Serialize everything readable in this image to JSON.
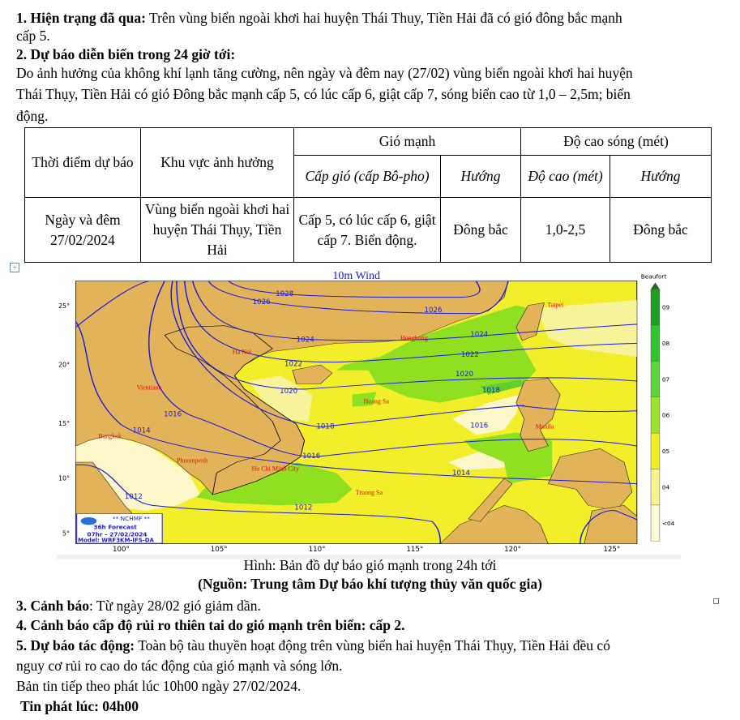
{
  "section1": {
    "heading": "1. Hiện trạng đã qua:",
    "text_line1": " Trên vùng biển ngoài khơi hai huyện Thái Thuy, Tiền Hải đã có gió đông bắc mạnh",
    "text_line2": "cấp 5."
  },
  "section2": {
    "heading": "2. Dự báo diễn biến trong 24 giờ tới:",
    "lines": [
      "Do ảnh hưởng của không khí lạnh tăng cường, nên ngày và đêm  nay (27/02) vùng biển ngoài khơi hai huyện",
      "Thái Thụy, Tiền Hải có gió Đông bắc mạnh cấp 5, có lúc cấp 6, giật cấp 7, sóng biển cao từ 1,0 – 2,5m; biển",
      "động."
    ]
  },
  "table": {
    "header": {
      "time": "Thời điểm dự báo",
      "area": "Khu vực ảnh hưởng",
      "wind": "Gió mạnh",
      "wave": "Độ cao sóng (mét)",
      "wind_level": "Cấp gió (cấp Bô-pho)",
      "wind_dir": "Hướng",
      "wave_height": "Độ cao (mét)",
      "wave_dir": "Hướng"
    },
    "row": {
      "time": "Ngày và đêm 27/02/2024",
      "area": "Vùng biển ngoài khơi hai huyện Thái Thụy, Tiền Hải",
      "wind_level": "Cấp 5, có lúc cấp 6, giật cấp 7. Biển động.",
      "wind_dir": "Đông bắc",
      "wave_height": "1,0-2,5",
      "wave_dir": "Đông bắc"
    }
  },
  "map": {
    "title": "10m Wind",
    "colorbar_title": "Beaufort",
    "colorbar_labels": [
      "09",
      "08",
      "07",
      "06",
      "05",
      "04",
      "<04"
    ],
    "colorbar_colors": [
      "#1f9e1f",
      "#2fc42f",
      "#5bd43a",
      "#9be22a",
      "#f0f020",
      "#f6f290",
      "#fbf9d8"
    ],
    "lon_ticks": [
      "100°",
      "105°",
      "110°",
      "115°",
      "120°",
      "125°"
    ],
    "lat_ticks": [
      "25°",
      "20°",
      "15°",
      "10°",
      "5°"
    ],
    "cities": [
      "Taipei",
      "Hongkong",
      "Ha Noi",
      "Vientiane",
      "Hoang Sa",
      "Manila",
      "Bangkok",
      "Phnompenh",
      "Ho Chi Minh City",
      "Truong Sa"
    ],
    "isobars": [
      "1028",
      "1026",
      "1026",
      "1022",
      "1020",
      "1016",
      "1014",
      "1024",
      "1024",
      "1022",
      "1022",
      "1020",
      "1020",
      "1018",
      "1018",
      "1016",
      "1016",
      "1016",
      "1014",
      "1014",
      "1012",
      "1012"
    ],
    "legend": {
      "org": "** NCHMF **",
      "forecast": "36h Forecast",
      "time": "07hr – 27/02/2024",
      "model": "Model: WRF3KM-IFS-DA"
    },
    "colors": {
      "land": "#e3b35a",
      "sea": "#f2ef2a",
      "isobar": "#1a1ae0",
      "city": "#e01010"
    }
  },
  "caption": {
    "line1": "Hình: Bản đồ dự báo gió mạnh trong 24h tới",
    "line2": "(Nguồn: Trung tâm Dự báo khí tượng thủy văn quốc gia)"
  },
  "section3": {
    "heading": "3. Cảnh báo",
    "text": ": Từ ngày 28/02 gió giảm dần."
  },
  "section4": {
    "text": "4. Cảnh báo cấp độ rủi ro thiên tai do gió mạnh trên biển: cấp 2."
  },
  "section5": {
    "heading": "5. Dự báo tác động:",
    "text_line1": " Toàn bộ tàu thuyền hoạt động trên vùng biển hai huyện Thái Thụy, Tiền Hải đều có",
    "text_line2": "nguy cơ rủi ro cao do tác động của gió mạnh và sóng lớn."
  },
  "next_bulletin": "Bản tin tiếp theo phát lúc 10h00 ngày 27/02/2024.",
  "issued": "Tin phát lúc: 04h00"
}
